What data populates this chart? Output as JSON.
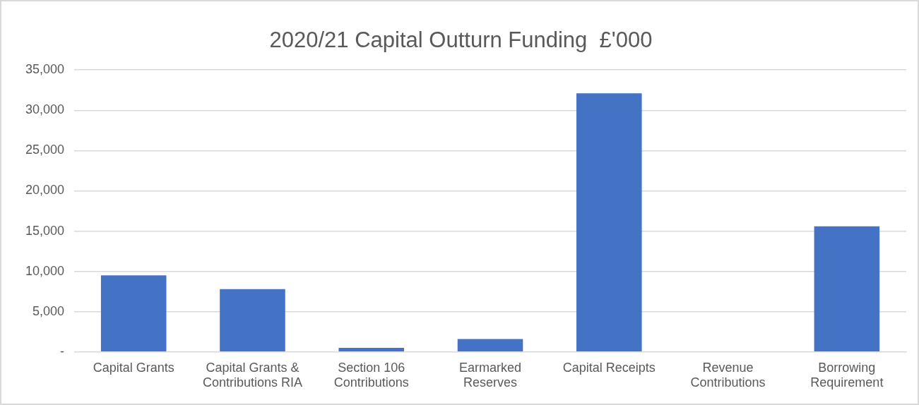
{
  "chart_data": {
    "type": "bar",
    "title": "2020/21 Capital Outturn Funding  £'000",
    "categories": [
      "Capital Grants",
      "Capital Grants & Contributions RIA",
      "Section 106 Contributions",
      "Earmarked Reserves",
      "Capital Receipts",
      "Revenue Contributions",
      "Borrowing Requirement"
    ],
    "values": [
      9500,
      7800,
      500,
      1600,
      32100,
      0,
      15600
    ],
    "color": "#4472c4",
    "ylim": [
      0,
      35000
    ],
    "yticks": [
      {
        "value": 0,
        "label": "-"
      },
      {
        "value": 5000,
        "label": "5,000"
      },
      {
        "value": 10000,
        "label": "10,000"
      },
      {
        "value": 15000,
        "label": "15,000"
      },
      {
        "value": 20000,
        "label": "20,000"
      },
      {
        "value": 25000,
        "label": "25,000"
      },
      {
        "value": 30000,
        "label": "30,000"
      },
      {
        "value": 35000,
        "label": "35,000"
      }
    ],
    "grid": "y",
    "legend": false
  }
}
